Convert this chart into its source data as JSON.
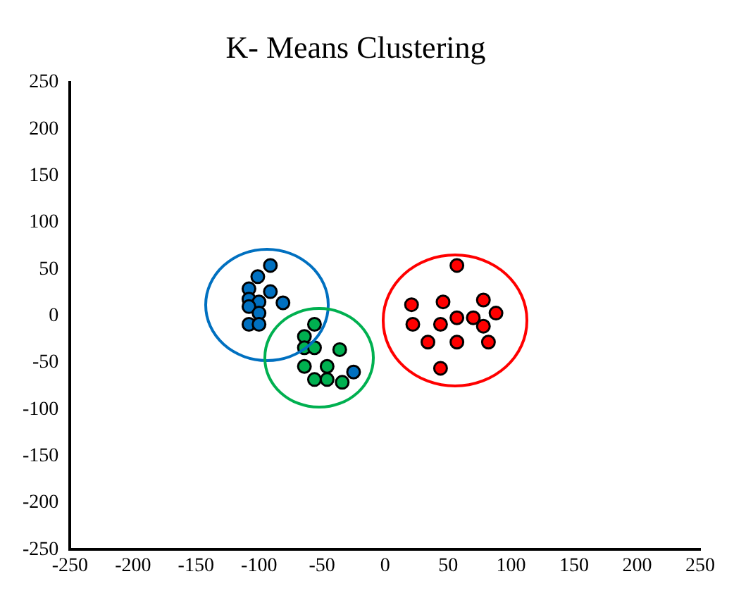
{
  "chart_data": {
    "type": "scatter",
    "title": "K- Means Clustering",
    "xlim": [
      -250,
      250
    ],
    "ylim": [
      -250,
      250
    ],
    "xticks": [
      -250,
      -200,
      -150,
      -100,
      -50,
      0,
      50,
      100,
      150,
      200,
      250
    ],
    "yticks": [
      -250,
      -200,
      -150,
      -100,
      -50,
      0,
      50,
      100,
      150,
      200,
      250
    ],
    "grid": false,
    "legend": false,
    "marker": "circle",
    "series": [
      {
        "color": "#0070c0",
        "x": [
          -91,
          -101,
          -108,
          -91,
          -108,
          -100,
          -81,
          -108,
          -100,
          -108,
          -100,
          -25
        ],
        "values": [
          54,
          42,
          29,
          26,
          18,
          15,
          14,
          10,
          3,
          -9,
          -9,
          -60
        ]
      },
      {
        "color": "#00b050",
        "x": [
          -56,
          -64,
          -64,
          -56,
          -36,
          -64,
          -46,
          -56,
          -46,
          -34
        ],
        "values": [
          -9,
          -22,
          -34,
          -34,
          -36,
          -54,
          -54,
          -68,
          -68,
          -71
        ]
      },
      {
        "color": "#ff0000",
        "x": [
          57,
          21,
          46,
          78,
          88,
          57,
          70,
          22,
          44,
          78,
          34,
          57,
          82,
          44
        ],
        "values": [
          54,
          12,
          15,
          17,
          3,
          -2,
          -2,
          -9,
          -9,
          -11,
          -28,
          -28,
          -28,
          -56
        ]
      }
    ]
  }
}
